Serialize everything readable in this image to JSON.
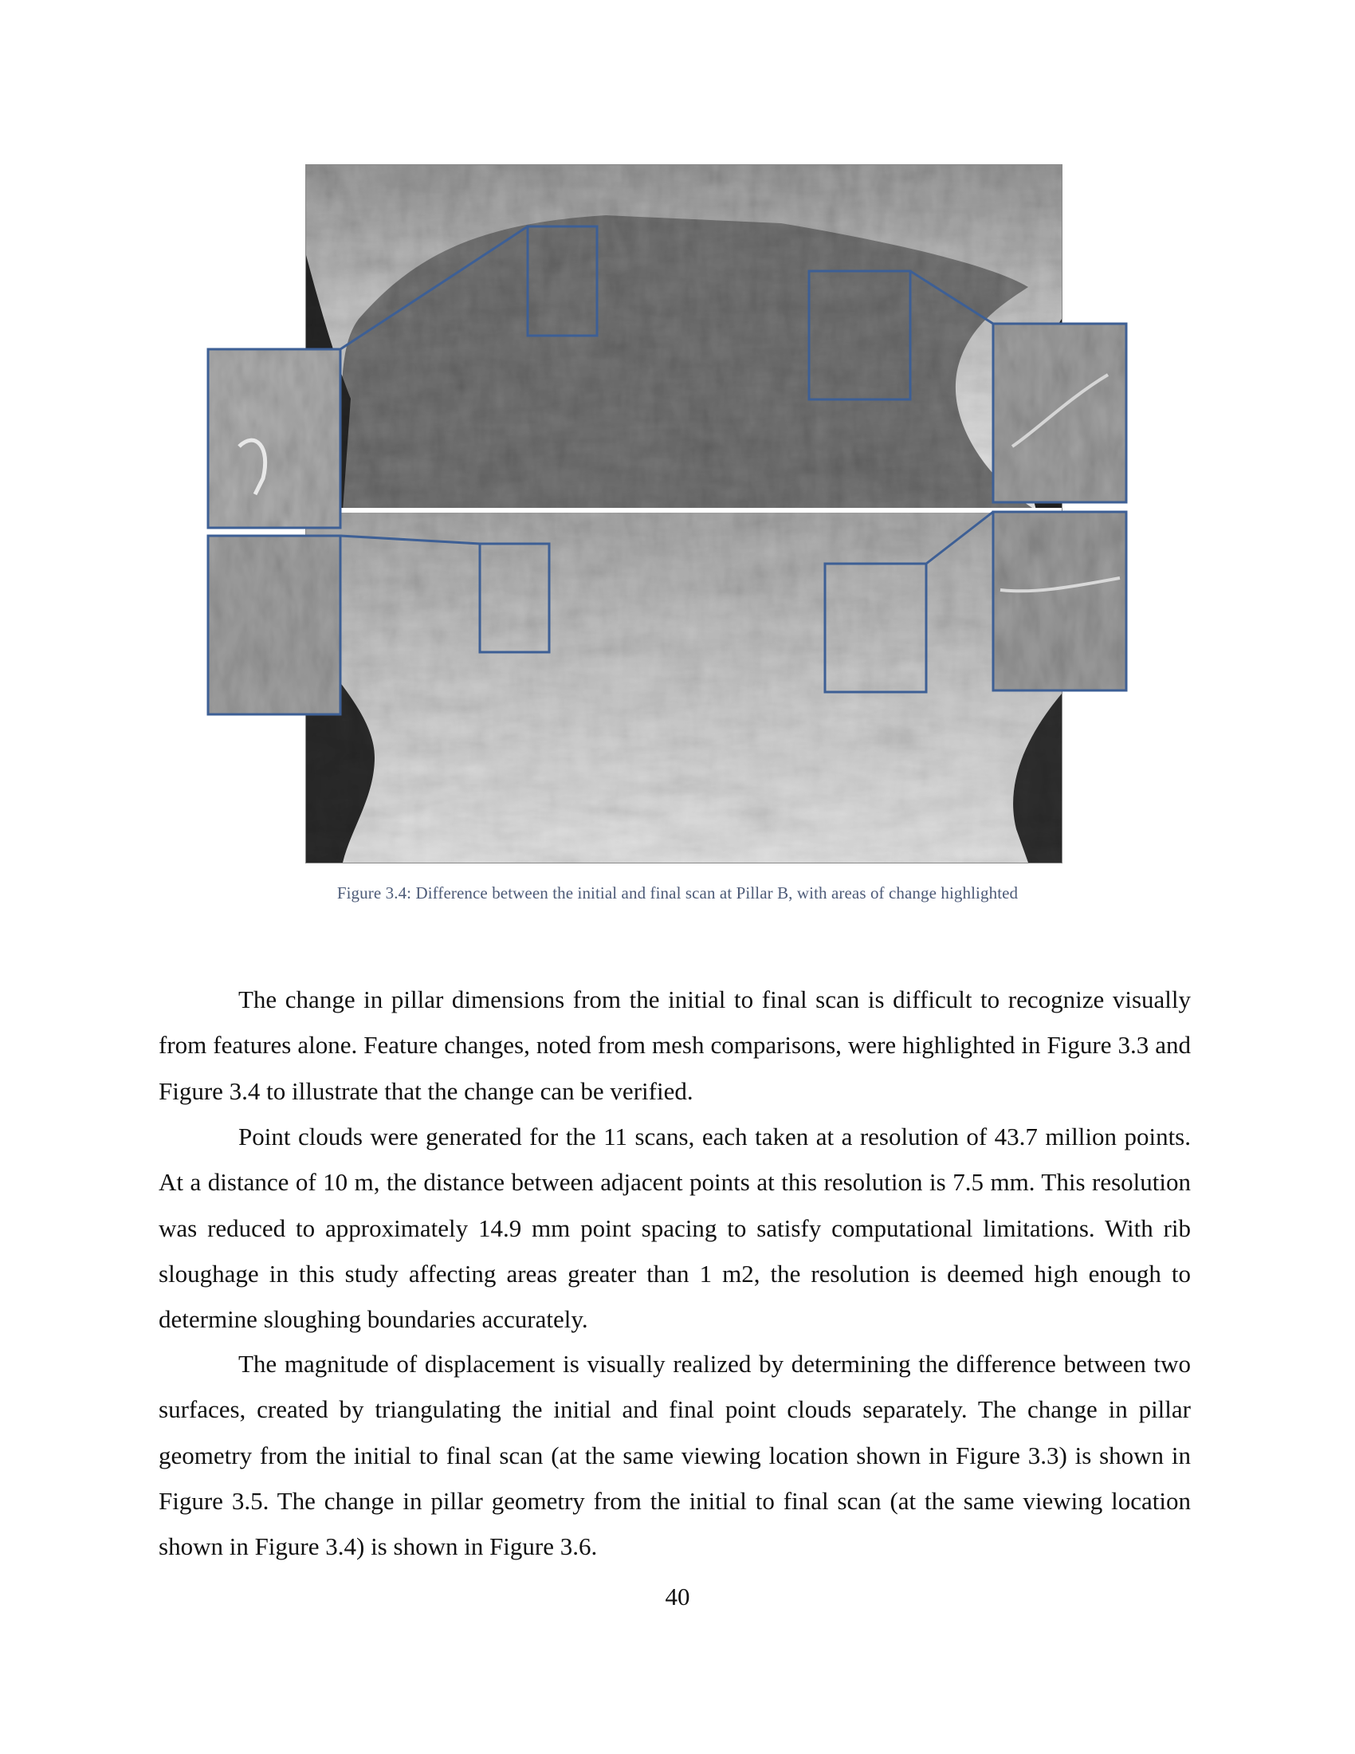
{
  "figure": {
    "caption": "Figure 3.4:  Difference between the initial and final scan at Pillar B, with areas of change highlighted",
    "highlight_color": "#3d5f95"
  },
  "body": {
    "paragraphs": [
      "The change in pillar dimensions from the initial to final scan is difficult to recognize visually from features alone.  Feature changes, noted from mesh comparisons, were highlighted in Figure 3.3 and Figure 3.4 to illustrate that the change can be verified.",
      "Point clouds were generated for the 11 scans, each taken at a resolution of 43.7 million points.  At a distance of 10 m, the distance between adjacent points at this resolution is 7.5 mm. This resolution was reduced to approximately 14.9 mm point spacing to satisfy computational limitations.  With rib sloughage in this study affecting areas greater than 1 m2, the resolution is deemed high enough to determine sloughing boundaries accurately.",
      "The magnitude of displacement is visually realized by determining the difference between two surfaces, created by triangulating the initial and final point clouds separately.  The change in pillar geometry from the initial to final scan (at the same viewing location shown in Figure 3.3) is shown in Figure 3.5.  The change in pillar geometry from the initial to final scan (at the same viewing location shown in Figure 3.4) is shown in Figure 3.6."
    ]
  },
  "page_number": "40"
}
